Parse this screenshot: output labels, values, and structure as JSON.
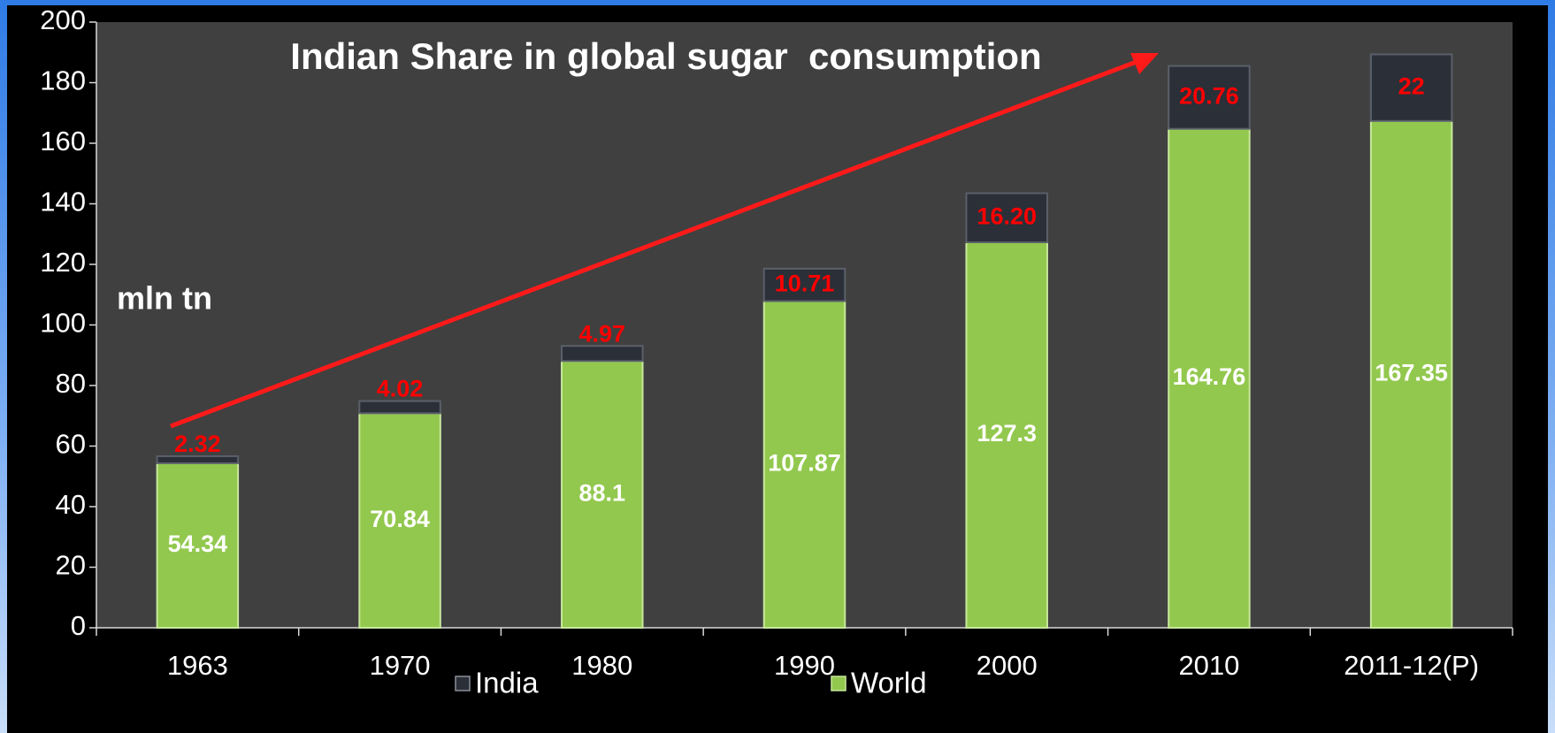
{
  "chart_data": {
    "type": "stacked_bar",
    "title": "Indian Share in global sugar  consumption",
    "annotation": "mln tn",
    "categories": [
      "1963",
      "1970",
      "1980",
      "1990",
      "2000",
      "2010",
      "2011-12(P)"
    ],
    "series": [
      {
        "name": "World",
        "color": "#92c84e",
        "label_color": "#ffffff",
        "values": [
          54.34,
          70.84,
          88.1,
          107.87,
          127.3,
          164.76,
          167.35
        ]
      },
      {
        "name": "India",
        "color": "#2b2f38",
        "label_color": "#ff0000",
        "values": [
          2.32,
          4.02,
          4.97,
          10.71,
          16.2,
          20.76,
          22
        ],
        "value_labels": [
          "2.32",
          "4.02",
          "4.97",
          "10.71",
          "16.20",
          "20.76",
          "22"
        ]
      }
    ],
    "ylim": [
      0,
      200
    ],
    "yticks": [
      0,
      20,
      40,
      60,
      80,
      100,
      120,
      140,
      160,
      180,
      200
    ],
    "grid": false,
    "legend": "bottom"
  }
}
